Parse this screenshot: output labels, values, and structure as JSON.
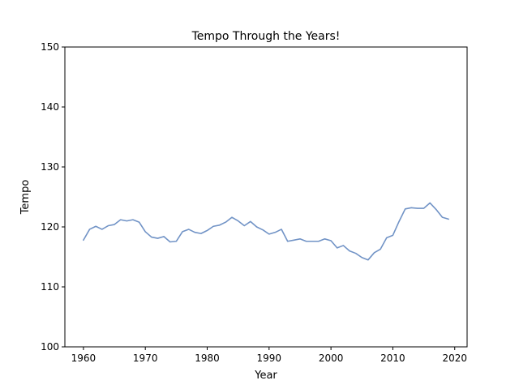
{
  "chart_data": {
    "type": "line",
    "title": "Tempo Through the Years!",
    "xlabel": "Year",
    "ylabel": "Tempo",
    "xlim": [
      1957,
      2022
    ],
    "ylim": [
      100,
      150
    ],
    "x_ticks": [
      1960,
      1970,
      1980,
      1990,
      2000,
      2010,
      2020
    ],
    "y_ticks": [
      100,
      110,
      120,
      130,
      140,
      150
    ],
    "grid": false,
    "line_color": "#7193c6",
    "series": [
      {
        "x": [
          1960,
          1961,
          1962,
          1963,
          1964,
          1965,
          1966,
          1967,
          1968,
          1969,
          1970,
          1971,
          1972,
          1973,
          1974,
          1975,
          1976,
          1977,
          1978,
          1979,
          1980,
          1981,
          1982,
          1983,
          1984,
          1985,
          1986,
          1987,
          1988,
          1989,
          1990,
          1991,
          1992,
          1993,
          1994,
          1995,
          1996,
          1997,
          1998,
          1999,
          2000,
          2001,
          2002,
          2003,
          2004,
          2005,
          2006,
          2007,
          2008,
          2009,
          2010,
          2011,
          2012,
          2013,
          2014,
          2015,
          2016,
          2017,
          2018,
          2019
        ],
        "values": [
          117.8,
          119.6,
          120.1,
          119.6,
          120.2,
          120.4,
          121.2,
          121.0,
          121.2,
          120.8,
          119.2,
          118.3,
          118.1,
          118.4,
          117.5,
          117.6,
          119.2,
          119.6,
          119.1,
          118.9,
          119.4,
          120.1,
          120.3,
          120.8,
          121.6,
          121.0,
          120.2,
          120.9,
          120.0,
          119.5,
          118.8,
          119.1,
          119.6,
          117.6,
          117.8,
          118.0,
          117.6,
          117.6,
          117.6,
          118.0,
          117.7,
          116.5,
          116.9,
          116.0,
          115.6,
          114.9,
          114.5,
          115.7,
          116.3,
          118.2,
          118.6,
          120.9,
          123.0,
          123.2,
          123.1,
          123.1,
          124.0,
          122.9,
          121.6,
          121.3
        ]
      }
    ]
  }
}
